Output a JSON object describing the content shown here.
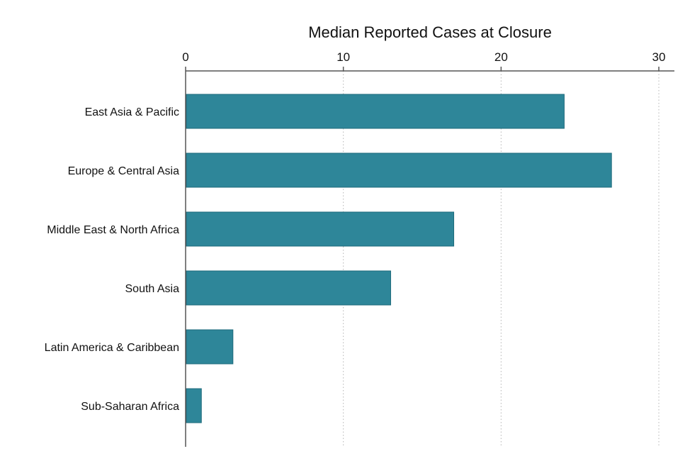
{
  "chart_data": {
    "type": "bar",
    "orientation": "horizontal",
    "title": "",
    "xlabel": "Median Reported Cases at Closure",
    "ylabel": "",
    "xlim": [
      0,
      31
    ],
    "x_ticks": [
      0,
      10,
      20,
      30
    ],
    "x_tick_labels": [
      "0",
      "10",
      "20",
      "30"
    ],
    "x_axis_position": "top",
    "grid": "vertical dotted",
    "legend": "none",
    "bar_color": "#2E8699",
    "bar_edge_color": "#1F6B7C",
    "categories": [
      "East Asia & Pacific",
      "Europe & Central Asia",
      "Middle East & North Africa",
      "South Asia",
      "Latin America & Caribbean",
      "Sub-Saharan Africa"
    ],
    "values": [
      24,
      27,
      17,
      13,
      3,
      1
    ]
  }
}
